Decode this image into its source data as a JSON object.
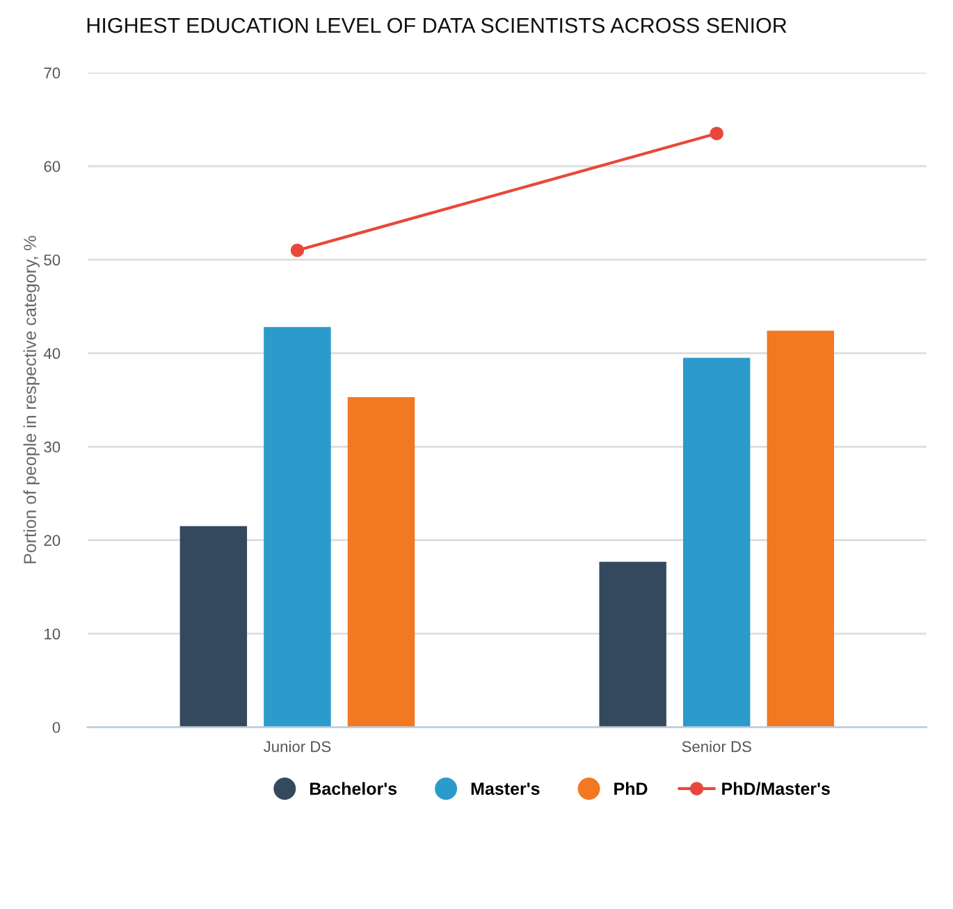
{
  "chart_data": {
    "type": "bar",
    "title": "HIGHEST EDUCATION LEVEL OF DATA SCIENTISTS ACROSS SENIOR",
    "ylabel": "Portion of people in respective category, %",
    "categories": [
      "Junior DS",
      "Senior DS"
    ],
    "series": [
      {
        "name": "Bachelor's",
        "color": "#34495e",
        "values": [
          21.5,
          17.7
        ]
      },
      {
        "name": "Master's",
        "color": "#2a9bcb",
        "values": [
          42.8,
          39.5
        ]
      },
      {
        "name": "PhD",
        "color": "#f27822",
        "values": [
          35.3,
          42.4
        ]
      },
      {
        "name": "PhD/Master's",
        "type": "line",
        "color": "#e8483b",
        "values": [
          51.0,
          63.5
        ],
        "marker": "circle"
      }
    ],
    "ylim": [
      0,
      70
    ],
    "yticks": [
      0,
      10,
      20,
      30,
      40,
      50,
      60,
      70
    ],
    "grid": "y",
    "legend": "bottom"
  }
}
